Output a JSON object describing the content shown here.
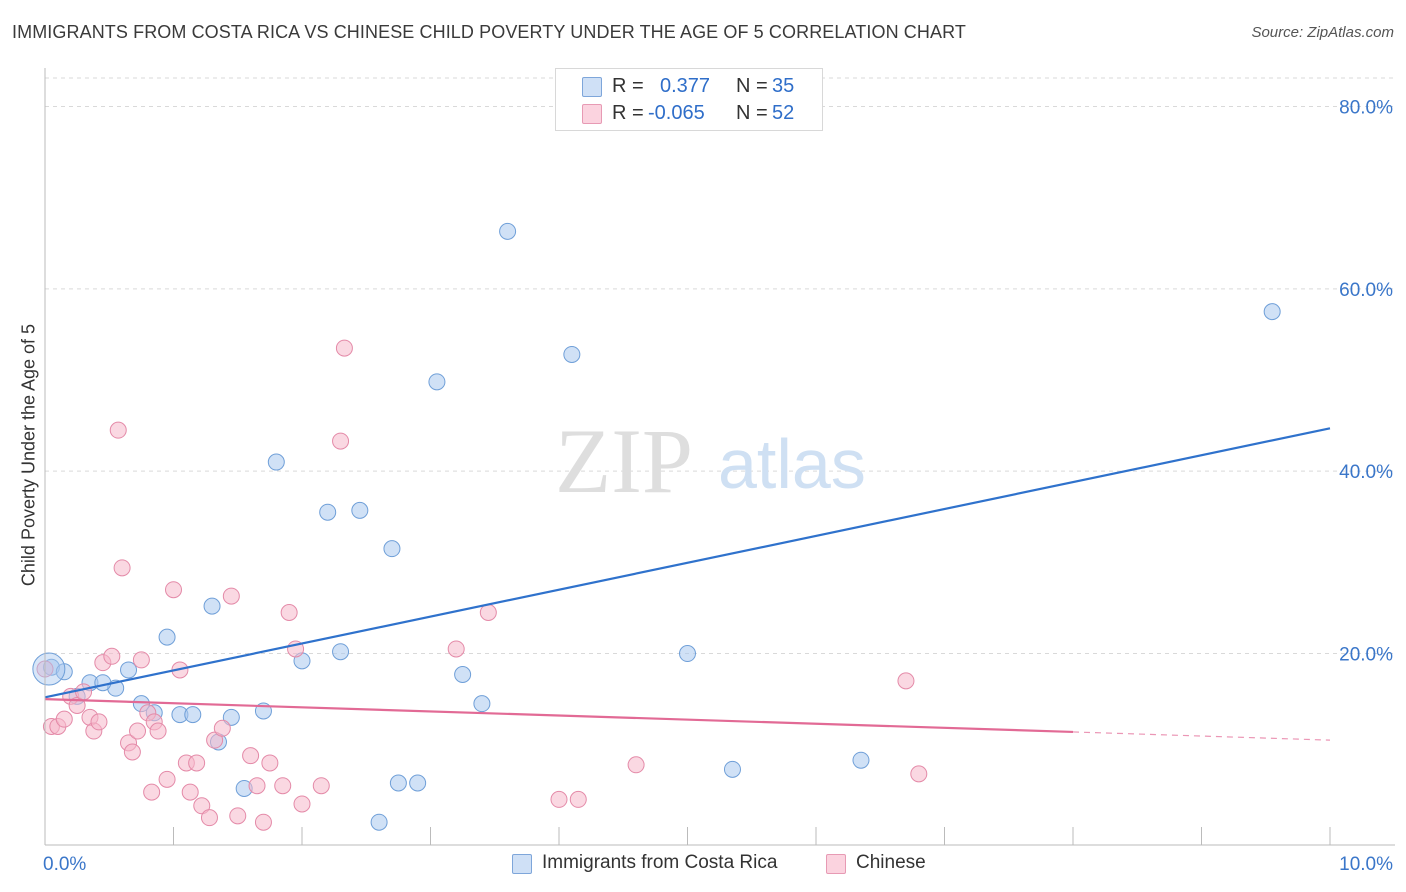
{
  "header": {
    "title": "IMMIGRANTS FROM COSTA RICA VS CHINESE CHILD POVERTY UNDER THE AGE OF 5 CORRELATION CHART",
    "source": "Source: ZipAtlas.com"
  },
  "watermark": {
    "zip": "ZIP",
    "atlas": "atlas"
  },
  "legend": {
    "rows": [
      {
        "r_label": "R =",
        "r_value": "0.377",
        "n_label": "N =",
        "n_value": "35",
        "color": "#a9c8ef"
      },
      {
        "r_label": "R =",
        "r_value": "-0.065",
        "n_label": "N =",
        "n_value": "52",
        "color": "#f5b8cb"
      }
    ]
  },
  "bottom_legend": {
    "items": [
      {
        "label": "Immigrants from Costa Rica",
        "color": "#a9c8ef"
      },
      {
        "label": "Chinese",
        "color": "#f5b8cb"
      }
    ]
  },
  "chart_data": {
    "type": "scatter",
    "xlabel": "",
    "ylabel": "Child Poverty Under the Age of 5",
    "xlim": [
      0,
      10
    ],
    "ylim": [
      -1,
      84
    ],
    "x_tick_labels": [
      {
        "value": 0,
        "label": "0.0%"
      },
      {
        "value": 10,
        "label": "10.0%"
      }
    ],
    "y_tick_labels": [
      {
        "value": 20,
        "label": "20.0%"
      },
      {
        "value": 40,
        "label": "40.0%"
      },
      {
        "value": 60,
        "label": "60.0%"
      },
      {
        "value": 80,
        "label": "80.0%"
      }
    ],
    "y_gridlines": [
      20,
      40,
      60,
      80
    ],
    "x_minor_ticks": [
      1,
      2,
      3,
      4,
      5,
      6,
      7,
      8,
      9,
      10
    ],
    "grid": true,
    "legend_position": "top-center",
    "series": [
      {
        "name": "Immigrants from Costa Rica",
        "color": "#a9c8ef",
        "stroke": "#6f9fd8",
        "trend": {
          "x": [
            0,
            10
          ],
          "y": [
            15.2,
            44.7
          ],
          "color": "#2f72cc",
          "dashed_from": null
        },
        "points": [
          [
            0.05,
            18.5
          ],
          [
            0.15,
            18.0
          ],
          [
            0.35,
            16.8
          ],
          [
            0.55,
            16.2
          ],
          [
            0.65,
            18.2
          ],
          [
            0.75,
            14.5
          ],
          [
            0.85,
            13.5
          ],
          [
            0.95,
            21.8
          ],
          [
            1.05,
            13.3
          ],
          [
            1.15,
            13.3
          ],
          [
            1.3,
            25.2
          ],
          [
            1.35,
            10.3
          ],
          [
            1.45,
            13.0
          ],
          [
            1.55,
            5.2
          ],
          [
            1.7,
            13.7
          ],
          [
            1.8,
            41.0
          ],
          [
            2.0,
            19.2
          ],
          [
            2.2,
            35.5
          ],
          [
            2.3,
            20.2
          ],
          [
            2.45,
            35.7
          ],
          [
            2.6,
            1.5
          ],
          [
            2.7,
            31.5
          ],
          [
            2.75,
            5.8
          ],
          [
            2.9,
            5.8
          ],
          [
            3.05,
            49.8
          ],
          [
            3.25,
            17.7
          ],
          [
            3.4,
            14.5
          ],
          [
            3.6,
            66.3
          ],
          [
            4.1,
            52.8
          ],
          [
            5.0,
            20.0
          ],
          [
            5.35,
            7.3
          ],
          [
            6.35,
            8.3
          ],
          [
            9.55,
            57.5
          ],
          [
            0.45,
            16.8
          ],
          [
            0.25,
            15.3
          ]
        ]
      },
      {
        "name": "Chinese",
        "color": "#f5b8cb",
        "stroke": "#e48aa8",
        "trend": {
          "x": [
            0,
            10
          ],
          "y": [
            15.0,
            10.5
          ],
          "color": "#e26a95",
          "dashed_from": 8.0
        },
        "points": [
          [
            0.0,
            18.3
          ],
          [
            0.05,
            12.0
          ],
          [
            0.1,
            12.0
          ],
          [
            0.15,
            12.8
          ],
          [
            0.2,
            15.3
          ],
          [
            0.25,
            14.3
          ],
          [
            0.3,
            15.8
          ],
          [
            0.35,
            13.0
          ],
          [
            0.38,
            11.5
          ],
          [
            0.42,
            12.5
          ],
          [
            0.45,
            19.0
          ],
          [
            0.52,
            19.7
          ],
          [
            0.57,
            44.5
          ],
          [
            0.6,
            29.4
          ],
          [
            0.65,
            10.2
          ],
          [
            0.68,
            9.2
          ],
          [
            0.72,
            11.5
          ],
          [
            0.75,
            19.3
          ],
          [
            0.8,
            13.5
          ],
          [
            0.83,
            4.8
          ],
          [
            0.85,
            12.5
          ],
          [
            0.88,
            11.5
          ],
          [
            0.95,
            6.2
          ],
          [
            1.0,
            27.0
          ],
          [
            1.05,
            18.2
          ],
          [
            1.1,
            8.0
          ],
          [
            1.13,
            4.8
          ],
          [
            1.18,
            8.0
          ],
          [
            1.22,
            3.3
          ],
          [
            1.28,
            2.0
          ],
          [
            1.32,
            10.5
          ],
          [
            1.38,
            11.8
          ],
          [
            1.45,
            26.3
          ],
          [
            1.5,
            2.2
          ],
          [
            1.6,
            8.8
          ],
          [
            1.65,
            5.5
          ],
          [
            1.7,
            1.5
          ],
          [
            1.75,
            8.0
          ],
          [
            1.85,
            5.5
          ],
          [
            1.9,
            24.5
          ],
          [
            1.95,
            20.5
          ],
          [
            2.0,
            3.5
          ],
          [
            2.15,
            5.5
          ],
          [
            2.3,
            43.3
          ],
          [
            2.33,
            53.5
          ],
          [
            3.2,
            20.5
          ],
          [
            3.45,
            24.5
          ],
          [
            4.0,
            4.0
          ],
          [
            4.15,
            4.0
          ],
          [
            4.6,
            7.8
          ],
          [
            6.7,
            17.0
          ],
          [
            6.8,
            6.8
          ]
        ]
      }
    ]
  }
}
